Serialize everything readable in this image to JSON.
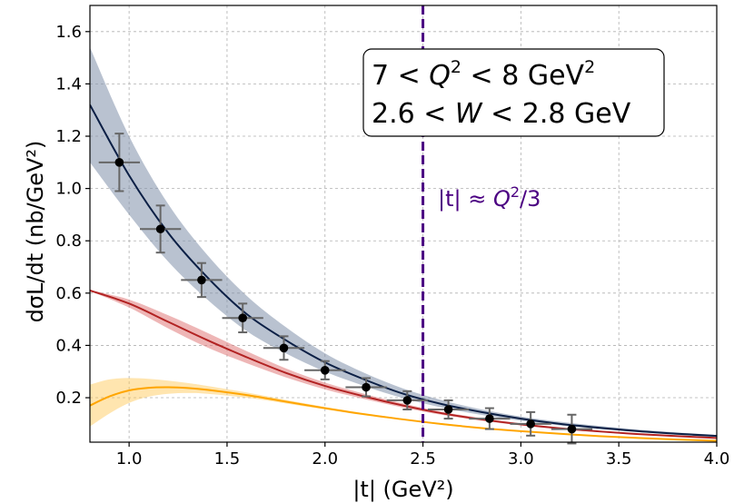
{
  "chart_data": {
    "type": "line",
    "xlabel": "|t| (GeV²)",
    "ylabel": "dσL/dt (nb/GeV²)",
    "xlim": [
      0.8,
      4.0
    ],
    "ylim": [
      0.03,
      1.7
    ],
    "xticks": [
      "1.0",
      "1.5",
      "2.0",
      "2.5",
      "3.0",
      "3.5",
      "4.0"
    ],
    "yticks": [
      "0.2",
      "0.4",
      "0.6",
      "0.8",
      "1.0",
      "1.2",
      "1.4",
      "1.6"
    ],
    "grid": true,
    "annotation": {
      "line1": {
        "pre": "7 < ",
        "q": "Q",
        "sup": "2",
        "post": " < 8 GeV",
        "sup2": "2"
      },
      "line2": {
        "pre": "2.6 < ",
        "w": "W",
        "post": " < 2.8 GeV"
      }
    },
    "vline": {
      "x": 2.5,
      "color": "#4b0082",
      "label_a": "|t| ≈ ",
      "label_q": "Q",
      "label_sup": "2",
      "label_b": "/3"
    },
    "colors": {
      "blue_line": "#0b1f45",
      "blue_band": "#8090aa",
      "red_line": "#b22222",
      "red_band": "#e07a7a",
      "orange_line": "#ffa500",
      "orange_band": "#ffc64d",
      "points": "#000000",
      "errorbars": "#666666"
    },
    "series": [
      {
        "style": "band",
        "x": [
          0.8,
          1.0,
          1.2,
          1.4,
          1.6,
          1.8,
          2.0,
          2.2,
          2.4,
          2.6,
          2.8,
          3.0,
          3.2,
          3.4,
          3.6,
          3.8,
          4.0
        ],
        "y": [
          1.32,
          1.05,
          0.83,
          0.66,
          0.52,
          0.42,
          0.335,
          0.27,
          0.215,
          0.175,
          0.145,
          0.12,
          0.1,
          0.085,
          0.072,
          0.062,
          0.054
        ],
        "upper": [
          1.54,
          1.2,
          0.94,
          0.745,
          0.59,
          0.47,
          0.37,
          0.295,
          0.235,
          0.19,
          0.155,
          0.128,
          0.108,
          0.092,
          0.078,
          0.067,
          0.058
        ],
        "lower": [
          1.1,
          0.9,
          0.72,
          0.575,
          0.455,
          0.37,
          0.3,
          0.245,
          0.198,
          0.162,
          0.134,
          0.112,
          0.094,
          0.08,
          0.068,
          0.058,
          0.05
        ]
      },
      {
        "style": "band",
        "x": [
          0.8,
          1.0,
          1.2,
          1.4,
          1.6,
          1.8,
          2.0,
          2.2,
          2.4,
          2.6,
          2.8,
          3.0,
          3.2,
          3.4,
          3.6,
          3.8,
          4.0
        ],
        "y": [
          0.61,
          0.56,
          0.49,
          0.42,
          0.355,
          0.295,
          0.245,
          0.205,
          0.17,
          0.14,
          0.117,
          0.098,
          0.083,
          0.071,
          0.061,
          0.053,
          0.046
        ],
        "upper": [
          0.612,
          0.575,
          0.515,
          0.448,
          0.378,
          0.312,
          0.258,
          0.215,
          0.178,
          0.146,
          0.122,
          0.102,
          0.086,
          0.074,
          0.063,
          0.055,
          0.048
        ],
        "lower": [
          0.608,
          0.545,
          0.465,
          0.392,
          0.332,
          0.278,
          0.232,
          0.195,
          0.162,
          0.134,
          0.112,
          0.094,
          0.08,
          0.068,
          0.059,
          0.051,
          0.044
        ]
      },
      {
        "style": "band",
        "x": [
          0.8,
          0.9,
          1.0,
          1.1,
          1.2,
          1.3,
          1.4,
          1.6,
          1.8,
          2.0,
          2.2,
          2.4,
          2.6,
          2.8,
          3.0,
          3.2,
          3.4,
          3.6,
          3.8,
          4.0
        ],
        "y": [
          0.17,
          0.205,
          0.228,
          0.238,
          0.24,
          0.237,
          0.23,
          0.21,
          0.185,
          0.16,
          0.137,
          0.117,
          0.099,
          0.084,
          0.072,
          0.062,
          0.053,
          0.046,
          0.04,
          0.035
        ],
        "upper": [
          0.25,
          0.27,
          0.275,
          0.272,
          0.265,
          0.256,
          0.245,
          0.22,
          0.192,
          0.165,
          0.141,
          0.12,
          0.102,
          0.087,
          0.074,
          0.064,
          0.055,
          0.048,
          0.042,
          0.037
        ],
        "lower": [
          0.09,
          0.14,
          0.18,
          0.204,
          0.215,
          0.218,
          0.215,
          0.2,
          0.178,
          0.155,
          0.133,
          0.114,
          0.096,
          0.081,
          0.07,
          0.06,
          0.051,
          0.044,
          0.038,
          0.033
        ]
      },
      {
        "style": "points",
        "x": [
          0.95,
          1.16,
          1.37,
          1.58,
          1.79,
          2.0,
          2.21,
          2.42,
          2.63,
          2.84,
          3.05,
          3.26
        ],
        "y": [
          1.1,
          0.845,
          0.65,
          0.505,
          0.39,
          0.305,
          0.24,
          0.19,
          0.155,
          0.12,
          0.1,
          0.08
        ],
        "yerr": [
          0.11,
          0.09,
          0.065,
          0.055,
          0.045,
          0.035,
          0.035,
          0.035,
          0.035,
          0.04,
          0.045,
          0.055
        ],
        "xerr": [
          0.105,
          0.105,
          0.105,
          0.105,
          0.105,
          0.105,
          0.105,
          0.105,
          0.105,
          0.105,
          0.105,
          0.105
        ]
      }
    ]
  }
}
